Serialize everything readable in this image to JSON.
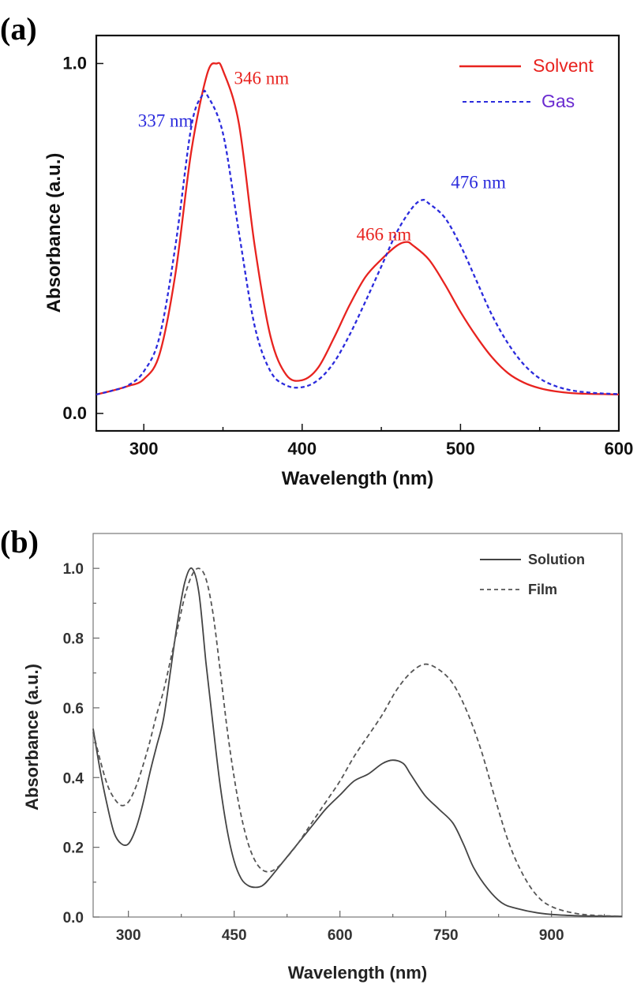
{
  "chart_data": [
    {
      "panel": "(a)",
      "type": "line",
      "xlabel": "Wavelength (nm)",
      "ylabel": "Absorbance (a.u.)",
      "xlim": [
        270,
        600
      ],
      "ylim": [
        -0.05,
        1.08
      ],
      "x_ticks": [
        300,
        400,
        500,
        600
      ],
      "y_ticks": [
        {
          "value": 0.0,
          "label": "0.0"
        },
        {
          "value": 1.0,
          "label": "1.0"
        }
      ],
      "legend_position": "top-right",
      "series": [
        {
          "name": "Solvent",
          "color": "#e8231f",
          "dash": "solid",
          "points": [
            [
              270,
              0.054
            ],
            [
              280,
              0.065
            ],
            [
              290,
              0.078
            ],
            [
              300,
              0.098
            ],
            [
              310,
              0.17
            ],
            [
              320,
              0.4
            ],
            [
              330,
              0.75
            ],
            [
              340,
              0.97
            ],
            [
              346,
              1.0
            ],
            [
              350,
              0.98
            ],
            [
              360,
              0.83
            ],
            [
              370,
              0.48
            ],
            [
              380,
              0.22
            ],
            [
              390,
              0.11
            ],
            [
              400,
              0.095
            ],
            [
              410,
              0.13
            ],
            [
              420,
              0.215
            ],
            [
              430,
              0.31
            ],
            [
              440,
              0.39
            ],
            [
              450,
              0.44
            ],
            [
              460,
              0.48
            ],
            [
              466,
              0.49
            ],
            [
              470,
              0.48
            ],
            [
              480,
              0.44
            ],
            [
              490,
              0.37
            ],
            [
              500,
              0.29
            ],
            [
              510,
              0.22
            ],
            [
              520,
              0.16
            ],
            [
              530,
              0.115
            ],
            [
              540,
              0.088
            ],
            [
              550,
              0.072
            ],
            [
              560,
              0.063
            ],
            [
              570,
              0.058
            ],
            [
              580,
              0.056
            ],
            [
              590,
              0.055
            ],
            [
              600,
              0.054
            ]
          ]
        },
        {
          "name": "Gas",
          "color": "#2b2bdc",
          "dash": "dashed",
          "points": [
            [
              270,
              0.054
            ],
            [
              280,
              0.065
            ],
            [
              290,
              0.08
            ],
            [
              300,
              0.12
            ],
            [
              310,
              0.22
            ],
            [
              320,
              0.48
            ],
            [
              330,
              0.82
            ],
            [
              337,
              0.91
            ],
            [
              340,
              0.91
            ],
            [
              350,
              0.8
            ],
            [
              360,
              0.52
            ],
            [
              370,
              0.25
            ],
            [
              380,
              0.12
            ],
            [
              390,
              0.08
            ],
            [
              400,
              0.075
            ],
            [
              410,
              0.095
            ],
            [
              420,
              0.145
            ],
            [
              430,
              0.225
            ],
            [
              440,
              0.32
            ],
            [
              450,
              0.42
            ],
            [
              460,
              0.52
            ],
            [
              470,
              0.59
            ],
            [
              476,
              0.61
            ],
            [
              480,
              0.6
            ],
            [
              490,
              0.56
            ],
            [
              500,
              0.48
            ],
            [
              510,
              0.38
            ],
            [
              520,
              0.28
            ],
            [
              530,
              0.2
            ],
            [
              540,
              0.14
            ],
            [
              550,
              0.1
            ],
            [
              560,
              0.078
            ],
            [
              570,
              0.066
            ],
            [
              580,
              0.06
            ],
            [
              590,
              0.057
            ],
            [
              600,
              0.055
            ]
          ]
        }
      ],
      "annotations": [
        {
          "text": "346 nm",
          "x": 346,
          "y": 1.0,
          "color": "#e8231f"
        },
        {
          "text": "337 nm",
          "x": 337,
          "y": 0.91,
          "color": "#2b2bdc"
        },
        {
          "text": "476 nm",
          "x": 476,
          "y": 0.61,
          "color": "#2b2bdc"
        },
        {
          "text": "466 nm",
          "x": 466,
          "y": 0.49,
          "color": "#e8231f"
        }
      ]
    },
    {
      "panel": "(b)",
      "type": "line",
      "xlabel": "Wavelength (nm)",
      "ylabel": "Absorbance (a.u.)",
      "xlim": [
        250,
        1000
      ],
      "ylim": [
        0.0,
        1.1
      ],
      "x_ticks": [
        300,
        450,
        600,
        750,
        900
      ],
      "y_ticks": [
        {
          "value": 0.0,
          "label": "0.0"
        },
        {
          "value": 0.2,
          "label": "0.2"
        },
        {
          "value": 0.4,
          "label": "0.4"
        },
        {
          "value": 0.6,
          "label": "0.6"
        },
        {
          "value": 0.8,
          "label": "0.8"
        },
        {
          "value": 1.0,
          "label": "1.0"
        }
      ],
      "legend_position": "top-right",
      "series": [
        {
          "name": "Solution",
          "color": "#444444",
          "dash": "solid",
          "points": [
            [
              250,
              0.54
            ],
            [
              260,
              0.42
            ],
            [
              270,
              0.32
            ],
            [
              280,
              0.24
            ],
            [
              290,
              0.21
            ],
            [
              300,
              0.21
            ],
            [
              310,
              0.25
            ],
            [
              320,
              0.32
            ],
            [
              330,
              0.41
            ],
            [
              340,
              0.49
            ],
            [
              350,
              0.57
            ],
            [
              360,
              0.71
            ],
            [
              370,
              0.85
            ],
            [
              380,
              0.96
            ],
            [
              390,
              1.0
            ],
            [
              400,
              0.93
            ],
            [
              410,
              0.73
            ],
            [
              420,
              0.55
            ],
            [
              430,
              0.38
            ],
            [
              440,
              0.25
            ],
            [
              450,
              0.16
            ],
            [
              460,
              0.11
            ],
            [
              470,
              0.09
            ],
            [
              480,
              0.085
            ],
            [
              490,
              0.09
            ],
            [
              500,
              0.11
            ],
            [
              520,
              0.16
            ],
            [
              540,
              0.21
            ],
            [
              560,
              0.26
            ],
            [
              580,
              0.31
            ],
            [
              600,
              0.35
            ],
            [
              620,
              0.39
            ],
            [
              640,
              0.41
            ],
            [
              660,
              0.44
            ],
            [
              675,
              0.45
            ],
            [
              690,
              0.44
            ],
            [
              700,
              0.41
            ],
            [
              720,
              0.35
            ],
            [
              740,
              0.31
            ],
            [
              760,
              0.27
            ],
            [
              775,
              0.21
            ],
            [
              790,
              0.14
            ],
            [
              810,
              0.08
            ],
            [
              830,
              0.04
            ],
            [
              850,
              0.025
            ],
            [
              880,
              0.012
            ],
            [
              910,
              0.006
            ],
            [
              950,
              0.003
            ],
            [
              1000,
              0.002
            ]
          ]
        },
        {
          "name": "Film",
          "color": "#555555",
          "dash": "dashed",
          "points": [
            [
              250,
              0.53
            ],
            [
              260,
              0.45
            ],
            [
              270,
              0.38
            ],
            [
              280,
              0.34
            ],
            [
              290,
              0.32
            ],
            [
              300,
              0.33
            ],
            [
              310,
              0.37
            ],
            [
              320,
              0.43
            ],
            [
              330,
              0.5
            ],
            [
              340,
              0.58
            ],
            [
              350,
              0.65
            ],
            [
              360,
              0.74
            ],
            [
              370,
              0.83
            ],
            [
              380,
              0.92
            ],
            [
              390,
              0.98
            ],
            [
              400,
              1.0
            ],
            [
              410,
              0.97
            ],
            [
              420,
              0.87
            ],
            [
              430,
              0.71
            ],
            [
              440,
              0.54
            ],
            [
              450,
              0.4
            ],
            [
              460,
              0.29
            ],
            [
              470,
              0.21
            ],
            [
              480,
              0.16
            ],
            [
              490,
              0.135
            ],
            [
              500,
              0.13
            ],
            [
              510,
              0.14
            ],
            [
              520,
              0.16
            ],
            [
              540,
              0.21
            ],
            [
              560,
              0.27
            ],
            [
              580,
              0.33
            ],
            [
              600,
              0.39
            ],
            [
              620,
              0.46
            ],
            [
              640,
              0.52
            ],
            [
              660,
              0.58
            ],
            [
              680,
              0.65
            ],
            [
              700,
              0.7
            ],
            [
              720,
              0.725
            ],
            [
              740,
              0.71
            ],
            [
              760,
              0.67
            ],
            [
              780,
              0.59
            ],
            [
              800,
              0.48
            ],
            [
              820,
              0.34
            ],
            [
              840,
              0.21
            ],
            [
              860,
              0.12
            ],
            [
              880,
              0.06
            ],
            [
              900,
              0.03
            ],
            [
              930,
              0.012
            ],
            [
              960,
              0.005
            ],
            [
              1000,
              0.002
            ]
          ]
        }
      ]
    }
  ]
}
